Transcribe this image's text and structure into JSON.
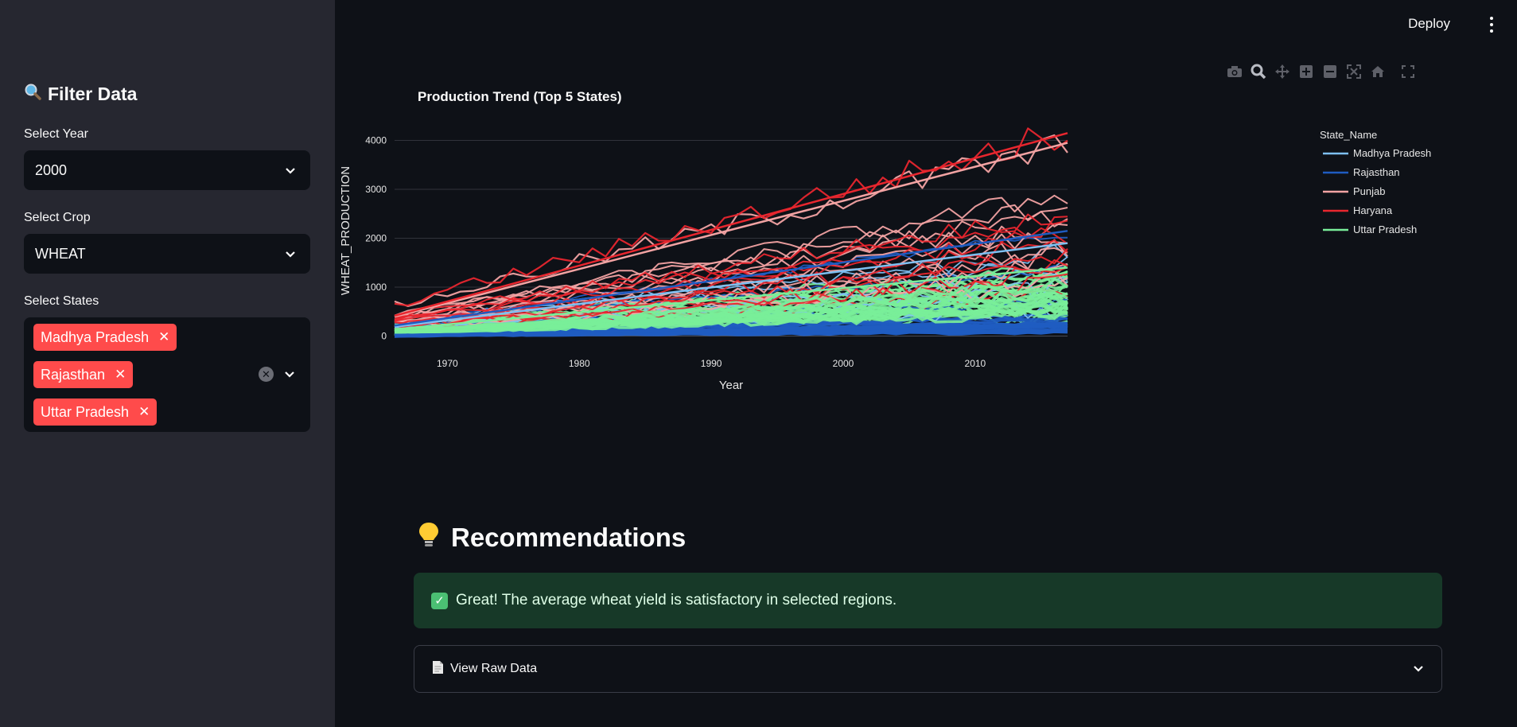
{
  "sidebar": {
    "title": "Filter Data",
    "title_icon": "magnifier-icon",
    "year": {
      "label": "Select Year",
      "value": "2000"
    },
    "crop": {
      "label": "Select Crop",
      "value": "WHEAT"
    },
    "states": {
      "label": "Select States",
      "selected": [
        "Madhya Pradesh",
        "Rajasthan",
        "Uttar Pradesh"
      ]
    }
  },
  "header": {
    "deploy_label": "Deploy"
  },
  "chart_title": "Production Trend (Top 5 States)",
  "chart_data": {
    "type": "line",
    "xlabel": "Year",
    "ylabel": "WHEAT_PRODUCTION",
    "xlim": [
      1966,
      2017
    ],
    "ylim": [
      -40,
      4350
    ],
    "x_ticks": [
      1970,
      1980,
      1990,
      2000,
      2010
    ],
    "y_ticks": [
      0,
      1000,
      2000,
      3000,
      4000
    ],
    "legend_title": "State_Name",
    "legend_placement": "top-right",
    "grid": true,
    "series": [
      {
        "name": "Madhya Pradesh",
        "color": "#7ec0f2",
        "trend_end": 1900
      },
      {
        "name": "Rajasthan",
        "color": "#1f5cc1",
        "trend_end": 2150
      },
      {
        "name": "Punjab",
        "color": "#f3a3a3",
        "trend_end": 3950
      },
      {
        "name": "Haryana",
        "color": "#e8262e",
        "trend_end": 4150
      },
      {
        "name": "Uttar Pradesh",
        "color": "#79ee99",
        "trend_end": 1400
      }
    ]
  },
  "recommendations": {
    "heading": "Recommendations",
    "icon": "lightbulb-icon",
    "message": "Great! The average wheat yield is satisfactory in selected regions."
  },
  "expander": {
    "label": "View Raw Data",
    "icon": "document-icon"
  }
}
